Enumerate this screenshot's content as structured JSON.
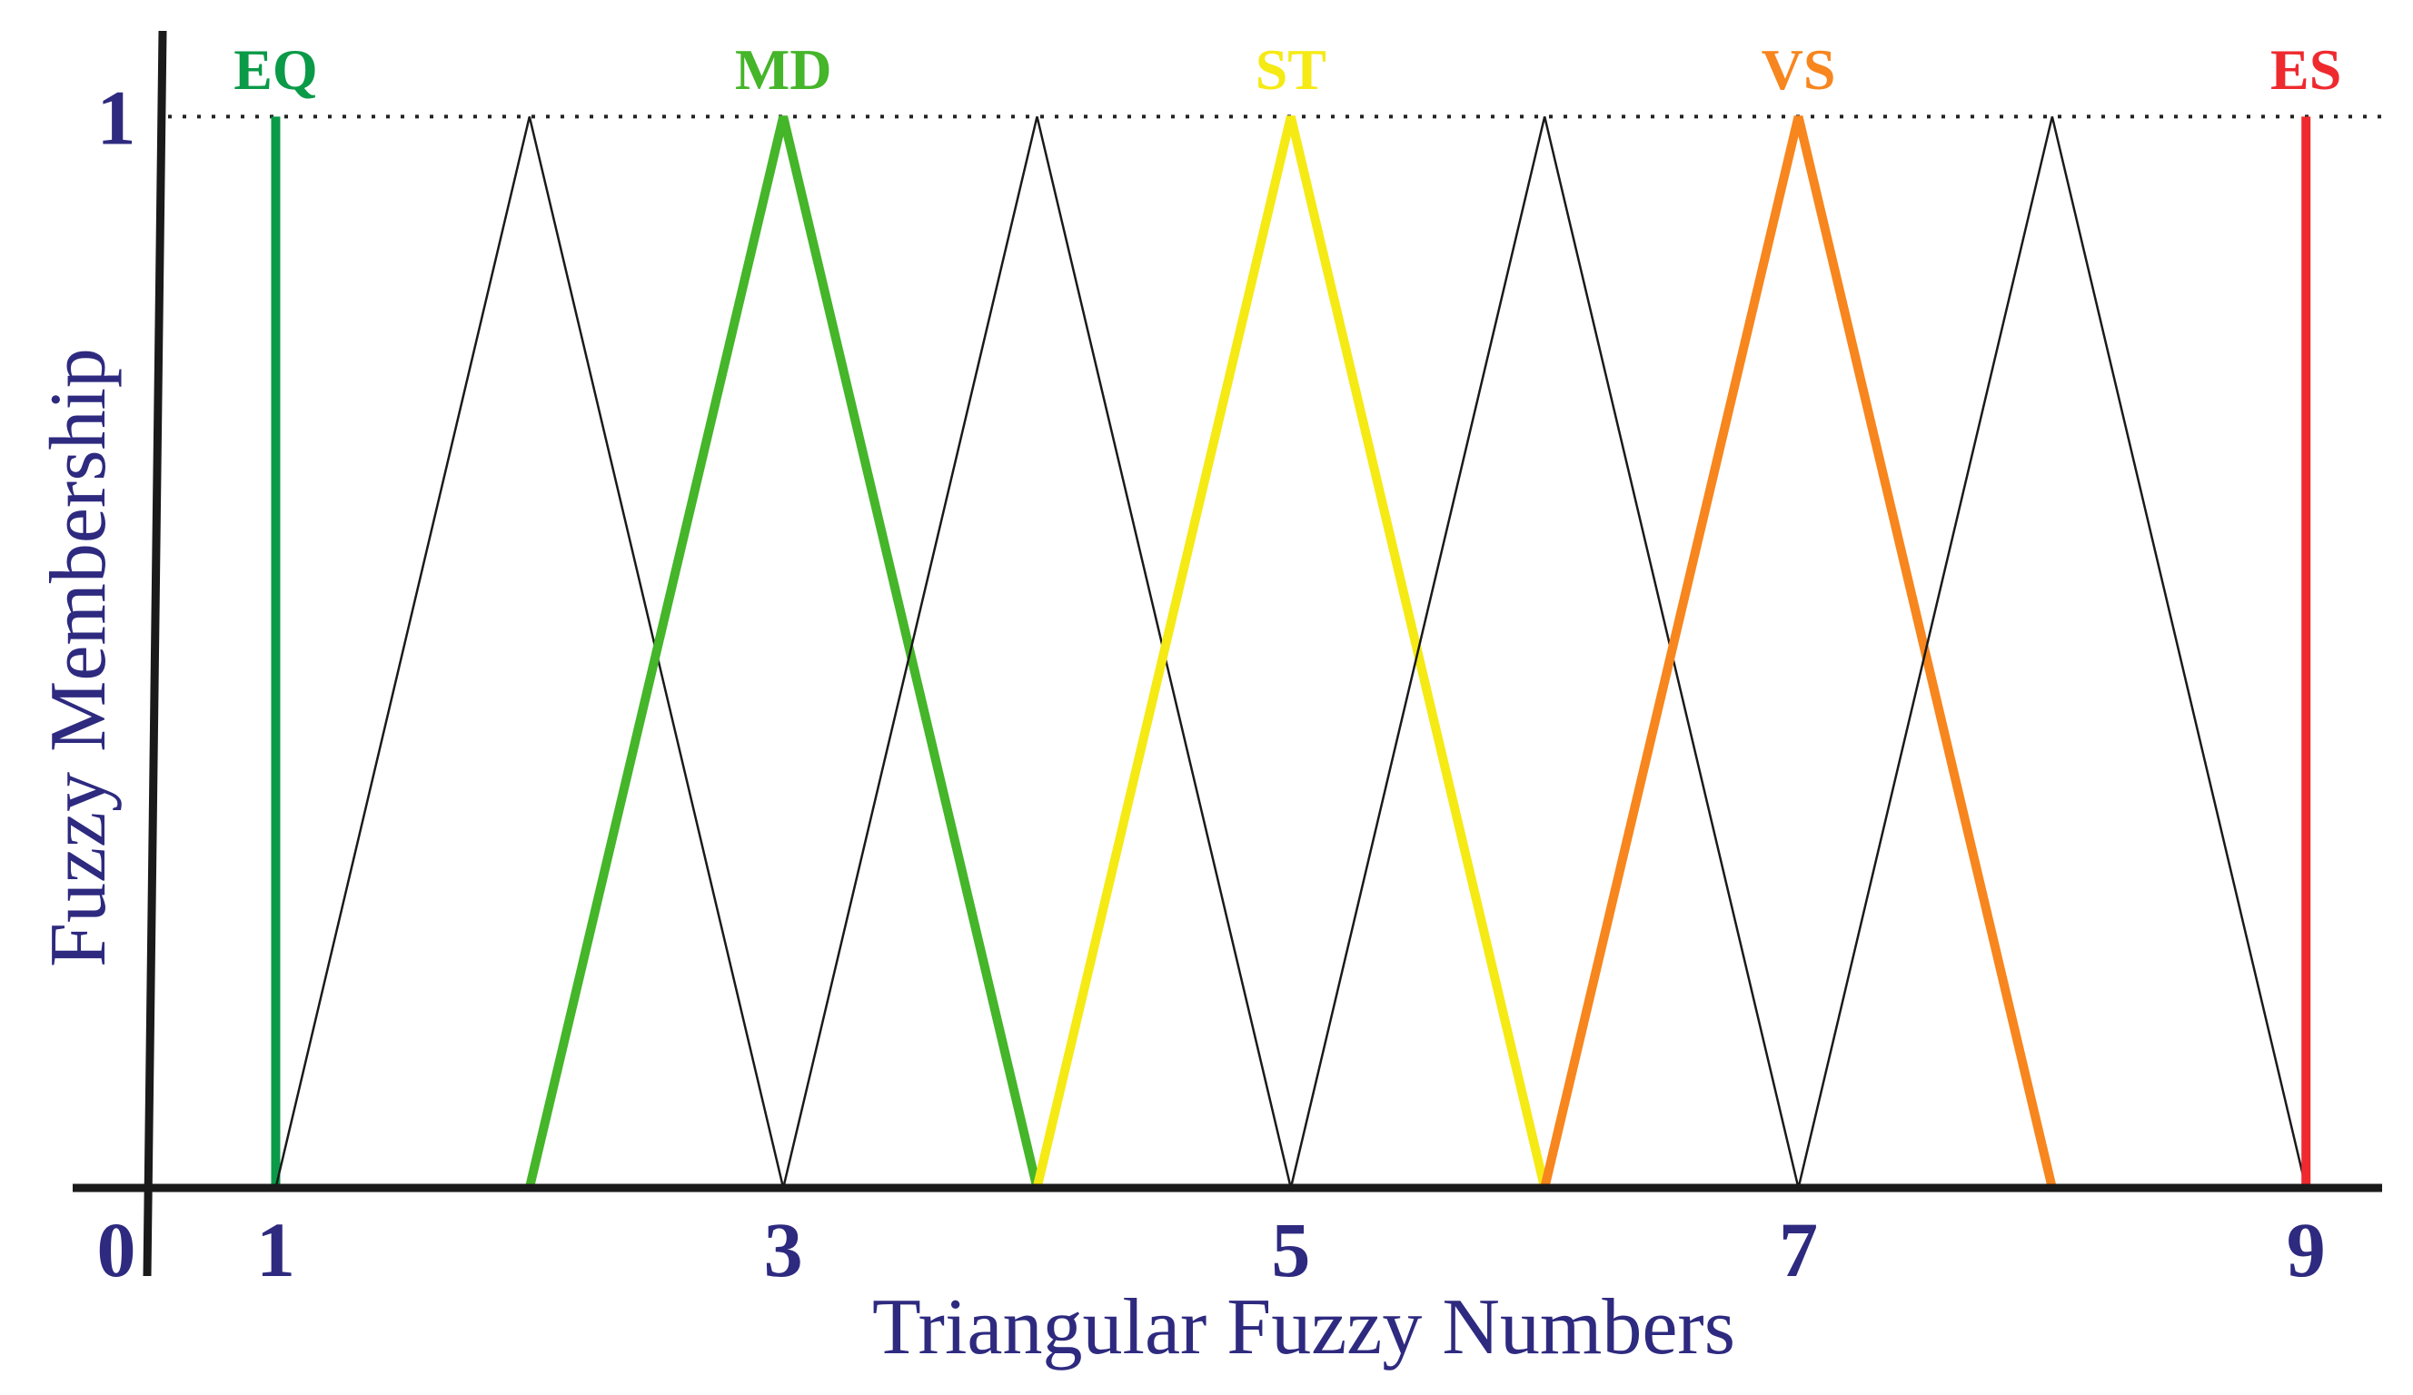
{
  "chart_data": {
    "type": "line",
    "xlabel": "Triangular Fuzzy Numbers",
    "ylabel": "Fuzzy Membership",
    "origin_label": 0,
    "xlim": [
      0.2,
      9.3
    ],
    "ylim": [
      0,
      1.08
    ],
    "xticks": [
      1,
      3,
      5,
      7,
      9
    ],
    "yticks": [
      1
    ],
    "series": [
      {
        "name": "EQ",
        "color": "#0a9a48",
        "x": [
          1,
          1
        ],
        "values": [
          0,
          1
        ]
      },
      {
        "color": "#1a1a1a",
        "x": [
          1,
          2,
          3
        ],
        "values": [
          0,
          1,
          0
        ]
      },
      {
        "name": "MD",
        "color": "#45b52a",
        "x": [
          2,
          3,
          4
        ],
        "values": [
          0,
          1,
          0
        ]
      },
      {
        "color": "#1a1a1a",
        "x": [
          3,
          4,
          5
        ],
        "values": [
          0,
          1,
          0
        ]
      },
      {
        "name": "ST",
        "color": "#f5ea14",
        "x": [
          4,
          5,
          6
        ],
        "values": [
          0,
          1,
          0
        ]
      },
      {
        "color": "#1a1a1a",
        "x": [
          5,
          6,
          7
        ],
        "values": [
          0,
          1,
          0
        ]
      },
      {
        "name": "VS",
        "color": "#f7861e",
        "x": [
          6,
          7,
          8
        ],
        "values": [
          0,
          1,
          0
        ]
      },
      {
        "color": "#1a1a1a",
        "x": [
          7,
          8,
          9
        ],
        "values": [
          0,
          1,
          0
        ]
      },
      {
        "name": "ES",
        "color": "#ee2a2f",
        "x": [
          9,
          9
        ],
        "values": [
          0,
          1
        ]
      }
    ]
  }
}
